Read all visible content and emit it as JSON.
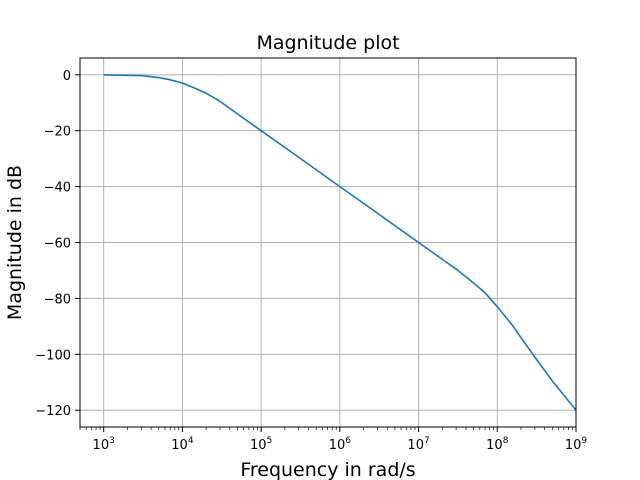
{
  "chart_data": {
    "type": "line",
    "title": "Magnitude plot",
    "xlabel": "Frequency in rad/s",
    "ylabel": "Magnitude in dB",
    "xscale": "log",
    "xlim": [
      500,
      1000000000
    ],
    "ylim": [
      -126,
      6
    ],
    "grid": true,
    "series_color": "#1f77b4",
    "xticks": [
      {
        "value": 1000,
        "base": "10",
        "exp": "3"
      },
      {
        "value": 10000,
        "base": "10",
        "exp": "4"
      },
      {
        "value": 100000,
        "base": "10",
        "exp": "5"
      },
      {
        "value": 1000000,
        "base": "10",
        "exp": "6"
      },
      {
        "value": 10000000,
        "base": "10",
        "exp": "7"
      },
      {
        "value": 100000000,
        "base": "10",
        "exp": "8"
      },
      {
        "value": 1000000000,
        "base": "10",
        "exp": "9"
      }
    ],
    "yticks": [
      {
        "value": 0,
        "label": "0"
      },
      {
        "value": -20,
        "label": "−20"
      },
      {
        "value": -40,
        "label": "−40"
      },
      {
        "value": -60,
        "label": "−60"
      },
      {
        "value": -80,
        "label": "−80"
      },
      {
        "value": -100,
        "label": "−100"
      },
      {
        "value": -120,
        "label": "−120"
      }
    ],
    "series": [
      {
        "x": [
          1000,
          2000,
          3000,
          5000,
          7000,
          10000,
          15000,
          20000,
          30000,
          50000,
          100000,
          300000,
          1000000,
          3000000,
          10000000,
          20000000,
          30000000,
          50000000,
          70000000,
          100000000,
          150000000,
          200000000,
          300000000,
          500000000,
          1000000000
        ],
        "y": [
          0,
          -0.2,
          -0.3,
          -1.0,
          -1.8,
          -3.0,
          -5.0,
          -6.6,
          -9.5,
          -14.0,
          -20.0,
          -29.5,
          -40.0,
          -49.5,
          -60.0,
          -66.0,
          -69.5,
          -74.5,
          -78.0,
          -83.0,
          -89.0,
          -94.0,
          -101.0,
          -109.5,
          -120.0
        ]
      }
    ]
  }
}
